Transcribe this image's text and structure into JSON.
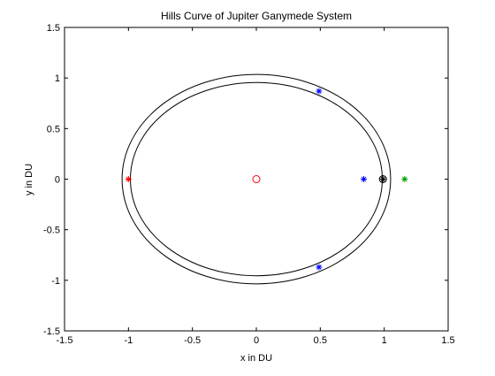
{
  "chart_data": {
    "type": "scatter",
    "title": "Hills Curve of Jupiter Ganymede System",
    "xlabel": "x in DU",
    "ylabel": "y in DU",
    "xlim": [
      -1.5,
      1.5
    ],
    "ylim": [
      -1.5,
      1.5
    ],
    "xticks": [
      -1.5,
      -1,
      -0.5,
      0,
      0.5,
      1,
      1.5
    ],
    "yticks": [
      -1.5,
      -1,
      -0.5,
      0,
      0.5,
      1,
      1.5
    ],
    "xtick_labels": [
      "-1.5",
      "-1",
      "-0.5",
      "0",
      "0.5",
      "1",
      "1.5"
    ],
    "ytick_labels": [
      "-1.5",
      "-1",
      "-0.5",
      "0",
      "0.5",
      "1",
      "1.5"
    ],
    "grid": false,
    "curves": [
      {
        "shape": "ellipse",
        "cx": 0,
        "cy": 0,
        "rx": 1.05,
        "ry": 1.035,
        "color": "#000000"
      },
      {
        "shape": "ellipse",
        "cx": 0,
        "cy": 0,
        "rx": 0.985,
        "ry": 0.955,
        "color": "#000000"
      }
    ],
    "points": [
      {
        "x": 0,
        "y": 0,
        "marker": "circle",
        "color": "#ff0000"
      },
      {
        "x": 0.99,
        "y": 0,
        "marker": "circle",
        "color": "#000000"
      },
      {
        "x": -1.0,
        "y": 0,
        "marker": "star",
        "color": "#ff0000"
      },
      {
        "x": 0.84,
        "y": 0,
        "marker": "star",
        "color": "#0000ff"
      },
      {
        "x": 0.99,
        "y": 0,
        "marker": "star",
        "color": "#000000"
      },
      {
        "x": 1.16,
        "y": 0,
        "marker": "star",
        "color": "#00a000"
      },
      {
        "x": 0.49,
        "y": 0.87,
        "marker": "star",
        "color": "#0000ff"
      },
      {
        "x": 0.49,
        "y": -0.87,
        "marker": "star",
        "color": "#0000ff"
      }
    ]
  }
}
